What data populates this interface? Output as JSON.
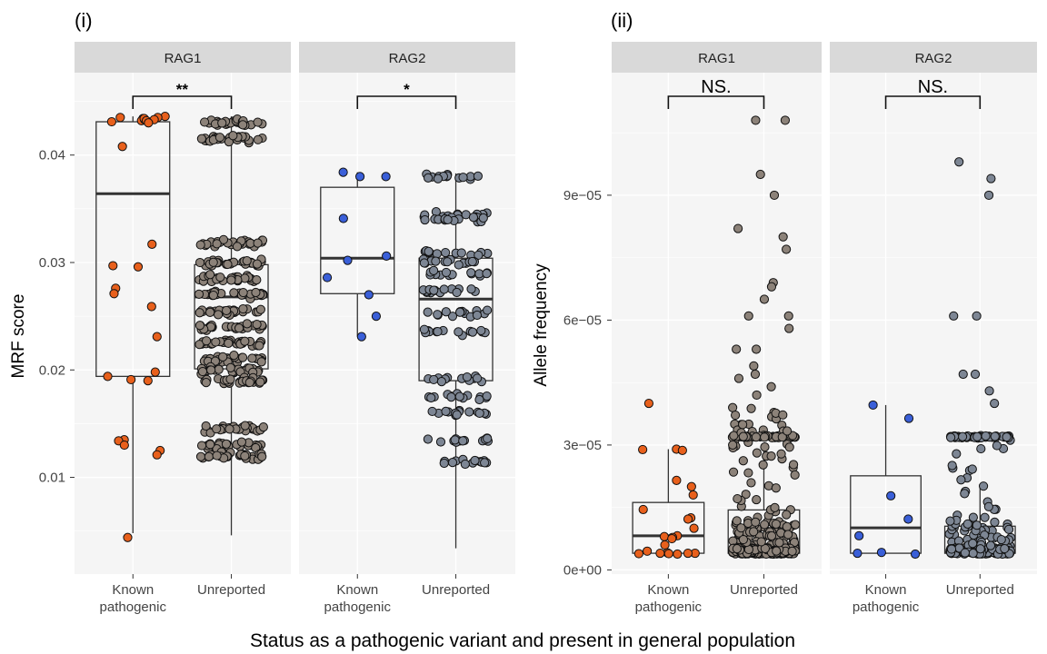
{
  "figure": {
    "panel_tags": [
      "(i)",
      "(ii)"
    ],
    "shared_xlabel": "Status as a pathogenic variant and present in general population"
  },
  "colors": {
    "rag1_known": "#E8601C",
    "rag1_unreported": "#8C8279",
    "rag2_known": "#3A5FD8",
    "rag2_unreported": "#7D8694",
    "panel_bg": "#F5F5F5",
    "strip_bg": "#D9D9D9",
    "grid": "#FFFFFF",
    "box_line": "#333333"
  },
  "chart_data": [
    {
      "type": "boxplot",
      "panel_tag": "(i)",
      "ylabel": "MRF score",
      "xlabel": "Status as a pathogenic variant and present in general population",
      "ylim": [
        0.001,
        0.0475
      ],
      "yticks": [
        0.01,
        0.02,
        0.03,
        0.04
      ],
      "ytick_labels": [
        "0.01",
        "0.02",
        "0.03",
        "0.04"
      ],
      "grid": true,
      "facets": [
        {
          "label": "RAG1",
          "categories": [
            "Known\npathogenic",
            "Unreported"
          ],
          "significance": "**",
          "boxes": [
            {
              "category": "Known pathogenic",
              "min": 0.0048,
              "q1": 0.0194,
              "median": 0.0364,
              "q3": 0.0431,
              "max": 0.0436
            },
            {
              "category": "Unreported",
              "min": 0.0046,
              "q1": 0.0201,
              "median": 0.0268,
              "q3": 0.0298,
              "max": 0.0436
            }
          ],
          "points": [
            {
              "category": "Known pathogenic",
              "values": [
                0.0434,
                0.0435,
                0.0432,
                0.0436,
                0.0433,
                0.0434,
                0.0431,
                0.0435,
                0.0432,
                0.0433,
                0.043,
                0.0408,
                0.0317,
                0.0297,
                0.0296,
                0.0276,
                0.0271,
                0.0259,
                0.0231,
                0.0198,
                0.0194,
                0.0191,
                0.019,
                0.0135,
                0.0134,
                0.013,
                0.0125,
                0.0121,
                0.0044
              ]
            },
            {
              "category": "Unreported",
              "range": [
                0.0044,
                0.0436
              ],
              "clusters": [
                0.043,
                0.0415,
                0.0318,
                0.03,
                0.0285,
                0.027,
                0.0255,
                0.024,
                0.0225,
                0.021,
                0.02,
                0.019,
                0.0145,
                0.013,
                0.012
              ],
              "count_approx": 420
            }
          ]
        },
        {
          "label": "RAG2",
          "categories": [
            "Known\npathogenic",
            "Unreported"
          ],
          "significance": "*",
          "boxes": [
            {
              "category": "Known pathogenic",
              "min": 0.0231,
              "q1": 0.0271,
              "median": 0.0304,
              "q3": 0.037,
              "max": 0.0384
            },
            {
              "category": "Unreported",
              "min": 0.0034,
              "q1": 0.019,
              "median": 0.0266,
              "q3": 0.0304,
              "max": 0.0383
            }
          ],
          "points": [
            {
              "category": "Known pathogenic",
              "values": [
                0.0384,
                0.038,
                0.038,
                0.0341,
                0.0306,
                0.0302,
                0.0286,
                0.027,
                0.025,
                0.0231
              ]
            },
            {
              "category": "Unreported",
              "range": [
                0.0034,
                0.0383
              ],
              "clusters": [
                0.038,
                0.0344,
                0.034,
                0.0309,
                0.03,
                0.029,
                0.0273,
                0.0253,
                0.0235,
                0.0192,
                0.0175,
                0.016,
                0.0134,
                0.0115
              ],
              "count_approx": 200
            }
          ]
        }
      ]
    },
    {
      "type": "boxplot",
      "panel_tag": "(ii)",
      "ylabel": "Allele frequency",
      "xlabel": "Status as a pathogenic variant and present in general population",
      "ylim": [
        -1e-06,
        0.000119
      ],
      "yticks": [
        0,
        3e-05,
        6e-05,
        9e-05
      ],
      "ytick_labels": [
        "0e+00",
        "3e−05",
        "6e−05",
        "9e−05"
      ],
      "grid": true,
      "facets": [
        {
          "label": "RAG1",
          "categories": [
            "Known\npathogenic",
            "Unreported"
          ],
          "significance": "NS.",
          "boxes": [
            {
              "category": "Known pathogenic",
              "min": 3.8e-06,
              "q1": 4e-06,
              "median": 8.2e-06,
              "q3": 1.62e-05,
              "max": 2.9e-05
            },
            {
              "category": "Unreported",
              "min": 3.8e-06,
              "q1": 4e-06,
              "median": 4.2e-06,
              "q3": 1.44e-05,
              "max": 2.9e-05
            }
          ],
          "points": [
            {
              "category": "Known pathogenic",
              "values": [
                4e-05,
                2.9e-05,
                2.89e-05,
                2.87e-05,
                2.15e-05,
                2e-05,
                1.8e-05,
                1.45e-05,
                1.25e-05,
                1.22e-05,
                1e-05,
                8.2e-06,
                8e-06,
                7.8e-06,
                7.5e-06,
                6e-06,
                4.5e-06,
                4e-06,
                3.8e-06,
                3.9e-06,
                4e-06,
                4.1e-06,
                4e-06,
                3.9e-06
              ]
            },
            {
              "category": "Unreported",
              "outliers": [
                0.000108,
                0.000108,
                9.5e-05,
                9e-05,
                8.2e-05,
                8e-05,
                7.7e-05,
                6.9e-05,
                6.8e-05,
                6.5e-05,
                6.1e-05,
                6.1e-05,
                5.8e-05,
                5.3e-05,
                5.3e-05,
                4.9e-05,
                4.7e-05,
                4.6e-05,
                4.4e-05,
                4.2e-05
              ],
              "range": [
                3.8e-06,
                4e-05
              ],
              "count_approx": 520
            }
          ]
        },
        {
          "label": "RAG2",
          "categories": [
            "Known\npathogenic",
            "Unreported"
          ],
          "significance": "NS.",
          "boxes": [
            {
              "category": "Known pathogenic",
              "min": 3.8e-06,
              "q1": 4e-06,
              "median": 1.01e-05,
              "q3": 2.26e-05,
              "max": 3.96e-05
            },
            {
              "category": "Unreported",
              "min": 3.8e-06,
              "q1": 4e-06,
              "median": 4.2e-06,
              "q3": 1.05e-05,
              "max": 2e-05
            }
          ],
          "points": [
            {
              "category": "Known pathogenic",
              "values": [
                3.96e-05,
                3.64e-05,
                1.78e-05,
                1.22e-05,
                8.2e-06,
                4.2e-06,
                4e-06,
                3.8e-06
              ]
            },
            {
              "category": "Unreported",
              "outliers": [
                9.8e-05,
                9.4e-05,
                9e-05,
                6.1e-05,
                6.1e-05,
                4.7e-05,
                4.7e-05,
                4.3e-05,
                4e-05
              ],
              "range": [
                3.8e-06,
                3.25e-05
              ],
              "count_approx": 280
            }
          ]
        }
      ]
    }
  ]
}
